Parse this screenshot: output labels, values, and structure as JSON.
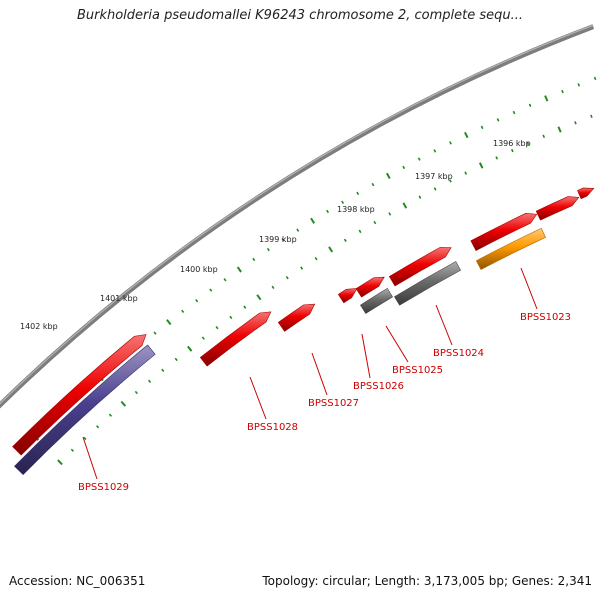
{
  "title": "Burkholderia pseudomallei K96243 chromosome 2, complete sequ...",
  "footer": {
    "accession": "Accession: NC_006351",
    "summary": "Topology: circular; Length: 3,173,005 bp; Genes: 2,341"
  },
  "colors": {
    "backbone": "#7d7d7d",
    "gene_forward": "#ee0000",
    "gene_reverse_blue": "#4a3f8f",
    "gene_reverse_gray": "#6a6a6a",
    "gene_orange": "#ff9900",
    "tick": "#228b22",
    "label": "#cc0000"
  },
  "chart_data": {
    "type": "circular-genome-map",
    "kbp_labels": [
      "1396 kbp",
      "1397 kbp",
      "1398 kbp",
      "1399 kbp",
      "1400 kbp",
      "1401 kbp",
      "1402 kbp"
    ],
    "gene_labels": [
      "BPSS1023",
      "BPSS1024",
      "BPSS1025",
      "BPSS1026",
      "BPSS1027",
      "BPSS1028",
      "BPSS1029"
    ]
  }
}
